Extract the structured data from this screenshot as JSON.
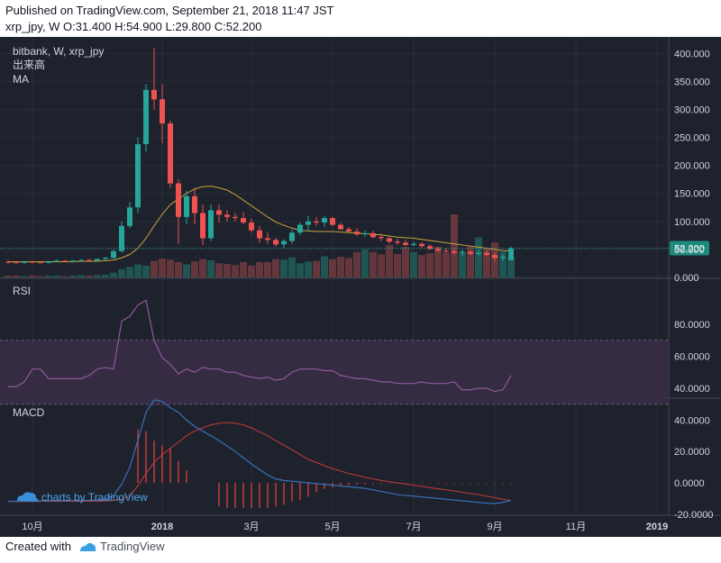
{
  "header": {
    "published": "Published on TradingView.com, September 21, 2018 11:47 JST",
    "ohlc": "xrp_jpy, W O:31.400 H:54.900 L:29.800 C:52.200"
  },
  "footer": {
    "created_with": "Created with",
    "brand": "TradingView"
  },
  "watermark": "charts by TradingView",
  "colors": {
    "background": "#1e222d",
    "grid": "#2a2e39",
    "up": "#26a69a",
    "down": "#ef5350",
    "ma": "#c8a43a",
    "rsi": "#8e5a9e",
    "rsi_band": "#3a2d47",
    "macd": "#3a6fb7",
    "signal": "#c73a3a",
    "axis_text": "#d1d4dc",
    "last_price_bg": "#1e8a7e"
  },
  "icons": [
    "tradingview-cloud-icon"
  ],
  "chart_data": [
    {
      "type": "candlestick",
      "title": "bitbank, W, xrp_jpy",
      "legend": [
        "出来高",
        "MA"
      ],
      "ylim": [
        0,
        400
      ],
      "yticks": [
        "400.000",
        "350.000",
        "300.000",
        "250.000",
        "200.000",
        "150.000",
        "100.000",
        "50.000",
        "0.000"
      ],
      "last_price": "52.200",
      "xticks": [
        "10月",
        "2018",
        "3月",
        "5月",
        "7月",
        "9月",
        "11月",
        "2019"
      ],
      "candles": [
        [
          28,
          31,
          25,
          27
        ],
        [
          27,
          29,
          25,
          26
        ],
        [
          26,
          30,
          25,
          28
        ],
        [
          28,
          30,
          26,
          27
        ],
        [
          27,
          29,
          26,
          26
        ],
        [
          26,
          30,
          25,
          29
        ],
        [
          29,
          32,
          27,
          30
        ],
        [
          30,
          31,
          27,
          28
        ],
        [
          28,
          31,
          27,
          30
        ],
        [
          30,
          33,
          28,
          31
        ],
        [
          31,
          33,
          29,
          30
        ],
        [
          30,
          34,
          29,
          33
        ],
        [
          33,
          37,
          31,
          35
        ],
        [
          35,
          50,
          33,
          47
        ],
        [
          47,
          100,
          45,
          92
        ],
        [
          92,
          135,
          88,
          125
        ],
        [
          125,
          250,
          115,
          238
        ],
        [
          238,
          345,
          225,
          335
        ],
        [
          335,
          410,
          300,
          318
        ],
        [
          318,
          345,
          240,
          275
        ],
        [
          275,
          280,
          160,
          168
        ],
        [
          168,
          175,
          60,
          108
        ],
        [
          108,
          155,
          95,
          145
        ],
        [
          145,
          160,
          95,
          115
        ],
        [
          115,
          130,
          58,
          70
        ],
        [
          70,
          130,
          65,
          120
        ],
        [
          120,
          130,
          98,
          112
        ],
        [
          112,
          120,
          100,
          108
        ],
        [
          108,
          115,
          100,
          106
        ],
        [
          106,
          116,
          95,
          98
        ],
        [
          98,
          105,
          80,
          84
        ],
        [
          84,
          92,
          62,
          70
        ],
        [
          70,
          80,
          60,
          67
        ],
        [
          67,
          71,
          55,
          59
        ],
        [
          59,
          68,
          52,
          65
        ],
        [
          65,
          85,
          60,
          80
        ],
        [
          80,
          98,
          75,
          94
        ],
        [
          94,
          110,
          82,
          100
        ],
        [
          100,
          108,
          92,
          98
        ],
        [
          98,
          110,
          90,
          106
        ],
        [
          106,
          108,
          92,
          94
        ],
        [
          94,
          98,
          85,
          86
        ],
        [
          86,
          90,
          80,
          82
        ],
        [
          82,
          88,
          74,
          77
        ],
        [
          77,
          84,
          73,
          79
        ],
        [
          79,
          83,
          70,
          72
        ],
        [
          72,
          78,
          65,
          70
        ],
        [
          70,
          72,
          60,
          64
        ],
        [
          64,
          69,
          58,
          62
        ],
        [
          62,
          67,
          56,
          58
        ],
        [
          58,
          64,
          55,
          60
        ],
        [
          60,
          63,
          52,
          56
        ],
        [
          56,
          59,
          49,
          51
        ],
        [
          51,
          55,
          45,
          48
        ],
        [
          48,
          53,
          44,
          47
        ],
        [
          47,
          52,
          42,
          44
        ],
        [
          44,
          50,
          38,
          46
        ],
        [
          46,
          49,
          40,
          42
        ],
        [
          42,
          50,
          38,
          44
        ],
        [
          44,
          49,
          38,
          40
        ],
        [
          40,
          45,
          30,
          35
        ],
        [
          35,
          42,
          29,
          37
        ],
        [
          31,
          55,
          30,
          52
        ]
      ],
      "volume": [
        3,
        3,
        2,
        3,
        2,
        3,
        3,
        2,
        3,
        4,
        3,
        4,
        5,
        8,
        14,
        18,
        22,
        20,
        28,
        32,
        30,
        26,
        22,
        27,
        31,
        29,
        24,
        23,
        21,
        26,
        20,
        26,
        26,
        31,
        30,
        34,
        24,
        27,
        28,
        36,
        31,
        35,
        33,
        43,
        48,
        43,
        39,
        55,
        40,
        52,
        43,
        38,
        41,
        52,
        42,
        107,
        42,
        53,
        68,
        50,
        59,
        44,
        34
      ],
      "ma": [
        28,
        28,
        28,
        28,
        28,
        28,
        28,
        28,
        28,
        29,
        29,
        29,
        30,
        31,
        35,
        41,
        52,
        70,
        92,
        113,
        130,
        140,
        150,
        158,
        162,
        163,
        160,
        156,
        148,
        138,
        128,
        118,
        108,
        99,
        93,
        88,
        84,
        83,
        82,
        82,
        82,
        81,
        80,
        79,
        78,
        77,
        76,
        74,
        72,
        71,
        70,
        68,
        66,
        64,
        62,
        60,
        58,
        56,
        54,
        52,
        50,
        48,
        47
      ]
    },
    {
      "type": "line",
      "title": "RSI",
      "ylim": [
        30,
        95
      ],
      "band": [
        30,
        70
      ],
      "yticks": [
        "80.0000",
        "60.0000",
        "40.0000"
      ],
      "values": [
        41,
        41,
        44,
        52,
        52,
        46,
        46,
        46,
        46,
        46,
        48,
        52,
        53,
        52,
        82,
        85,
        92,
        95,
        70,
        59,
        55,
        49,
        52,
        50,
        53,
        52,
        52,
        50,
        50,
        48,
        47,
        46,
        47,
        45,
        46,
        50,
        52,
        52,
        52,
        51,
        51,
        48,
        47,
        46,
        46,
        45,
        44,
        44,
        43,
        43,
        43,
        44,
        43,
        43,
        43,
        44,
        39,
        39,
        40,
        40,
        38,
        39,
        48
      ]
    },
    {
      "type": "line",
      "title": "MACD",
      "ylim": [
        -22,
        50
      ],
      "yticks": [
        "40.0000",
        "20.0000",
        "0.0000",
        "-20.0000"
      ],
      "macd": [
        -11.8,
        -11.8,
        -11.7,
        -11.6,
        -11.5,
        -11.4,
        -11.4,
        -11.4,
        -11.4,
        -11.3,
        -11.2,
        -11.0,
        -10.5,
        -8.0,
        -1.0,
        10.0,
        27.0,
        45.0,
        53.0,
        52.0,
        48.0,
        45.0,
        40.0,
        36.0,
        33.0,
        30.0,
        27.0,
        23.5,
        20.0,
        16.0,
        12.0,
        8.5,
        5.0,
        2.5,
        1.5,
        1.0,
        0.5,
        0.0,
        -0.5,
        -1.0,
        -1.5,
        -2.0,
        -2.5,
        -3.0,
        -3.5,
        -4.5,
        -5.5,
        -6.5,
        -7.5,
        -8.0,
        -8.5,
        -9.0,
        -9.5,
        -10.0,
        -10.5,
        -11.0,
        -11.5,
        -12.0,
        -12.5,
        -13.0,
        -13.2,
        -12.5,
        -11.2
      ],
      "signal": [
        -11.9,
        -11.9,
        -11.9,
        -11.9,
        -11.8,
        -11.8,
        -11.8,
        -11.8,
        -11.8,
        -11.8,
        -11.7,
        -11.7,
        -11.6,
        -11.3,
        -10.5,
        -8.0,
        -2.0,
        6.0,
        13.0,
        18.0,
        22.0,
        26.0,
        30.0,
        33.0,
        35.0,
        37.0,
        38.0,
        38.5,
        38.0,
        37.0,
        35.0,
        32.5,
        30.0,
        27.0,
        24.0,
        21.0,
        18.0,
        15.0,
        13.0,
        11.0,
        9.0,
        7.5,
        6.0,
        4.8,
        3.5,
        2.5,
        1.5,
        0.7,
        0.0,
        -0.8,
        -1.5,
        -2.2,
        -3.0,
        -3.8,
        -4.5,
        -5.2,
        -6.0,
        -6.8,
        -7.5,
        -8.5,
        -9.5,
        -10.5,
        -11.2
      ],
      "histogram": [
        0,
        0,
        0,
        0,
        0,
        0,
        0,
        0,
        0,
        0,
        0,
        0,
        0,
        0,
        0,
        0,
        34,
        33,
        27,
        24,
        22,
        14,
        8,
        0,
        0,
        0,
        -15,
        -16,
        -16,
        -16,
        -16,
        -16,
        -16,
        -15,
        -14,
        -12,
        -11,
        -9,
        -6,
        -4,
        -3,
        -2,
        -1.5,
        -1,
        -0.8,
        -0.6,
        -0.5,
        -0.4,
        -0.4,
        -0.4,
        -0.4,
        -0.4,
        -0.4,
        -0.4,
        -0.4,
        -0.4,
        -0.4,
        -0.4,
        -0.4,
        -0.4,
        -0.4,
        -0.4,
        -0.4
      ]
    }
  ]
}
